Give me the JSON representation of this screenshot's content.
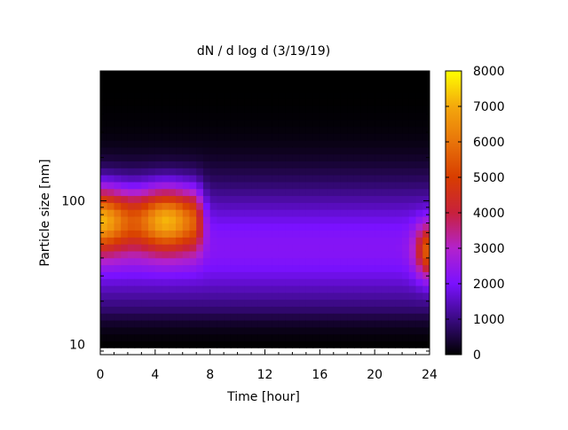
{
  "chart_data": {
    "type": "heatmap",
    "title": "dN / d log d (3/19/19)",
    "xlabel": "Time [hour]",
    "ylabel": "Particle size [nm]",
    "xlim": [
      0,
      24
    ],
    "ylim": [
      8.5,
      800
    ],
    "y_scale": "log",
    "x_ticks": [
      0,
      4,
      8,
      12,
      16,
      20,
      24
    ],
    "y_ticks": [
      10,
      100
    ],
    "colorbar": {
      "min": 0,
      "max": 8000,
      "ticks": [
        0,
        1000,
        2000,
        3000,
        4000,
        5000,
        6000,
        7000,
        8000
      ],
      "palette": "gnuplot-hot (black-purple-red-orange-yellow)"
    },
    "data_extent": {
      "time": [
        0,
        24
      ],
      "diameter_nm": [
        9.5,
        800
      ]
    },
    "features": [
      {
        "time": [
          0,
          8
        ],
        "peak_diameter_nm": 75,
        "peak_value": 6300
      },
      {
        "time": [
          22.8,
          24
        ],
        "peak_diameter_nm": 45,
        "peak_value": 5000
      }
    ],
    "background_value": 2200
  }
}
